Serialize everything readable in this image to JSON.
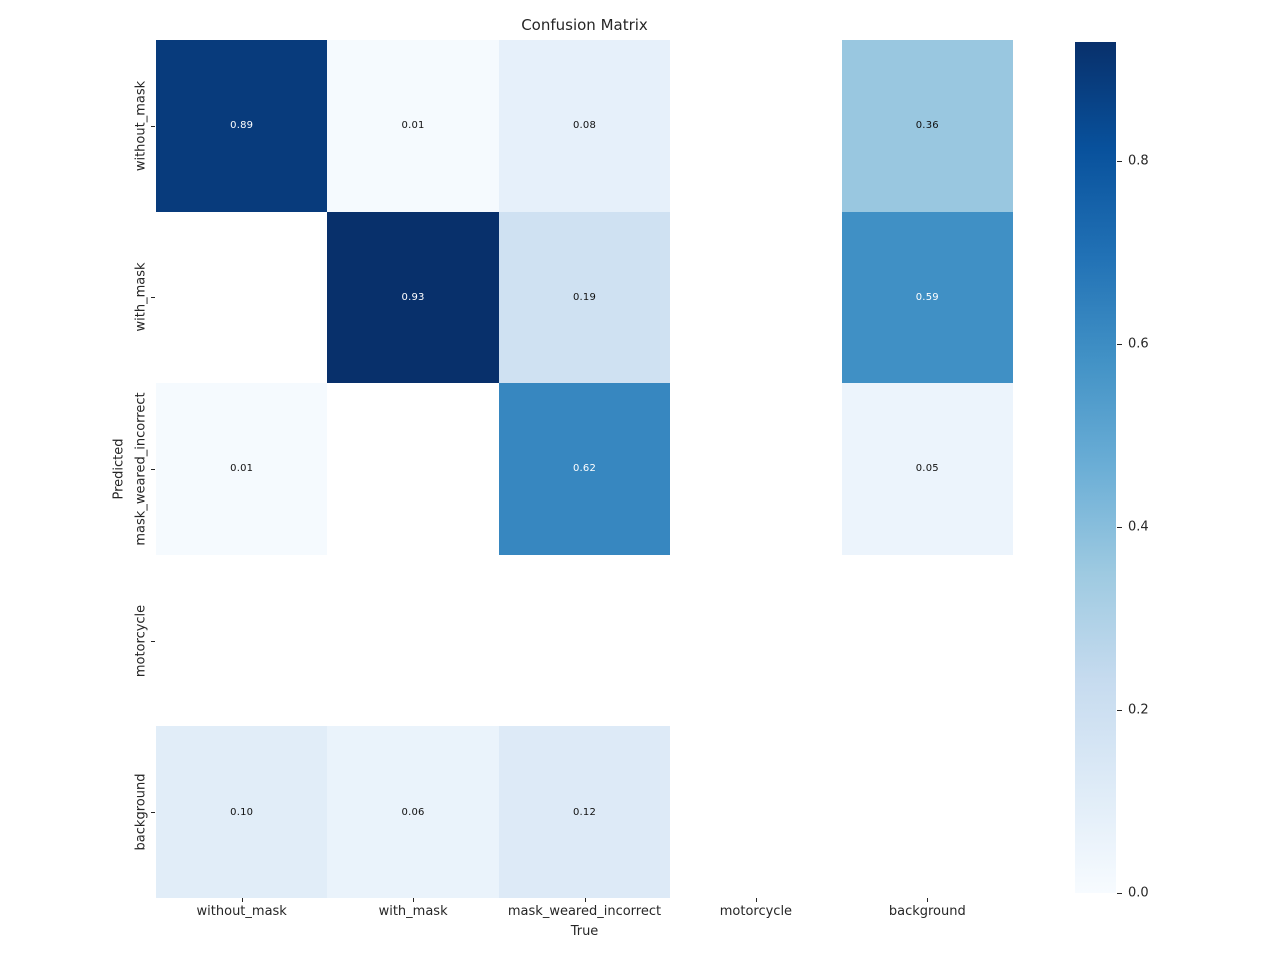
{
  "title": "Confusion Matrix",
  "chart_data": {
    "type": "heatmap",
    "title": "Confusion Matrix",
    "xlabel": "True",
    "ylabel": "Predicted",
    "x_categories": [
      "without_mask",
      "with_mask",
      "mask_weared_incorrect",
      "motorcycle",
      "background"
    ],
    "y_categories": [
      "without_mask",
      "with_mask",
      "mask_weared_incorrect",
      "motorcycle",
      "background"
    ],
    "normalization": "column (values per True class sum to 1)",
    "values": [
      [
        0.89,
        0.01,
        0.08,
        null,
        0.36
      ],
      [
        null,
        0.93,
        0.19,
        null,
        0.59
      ],
      [
        0.01,
        null,
        0.62,
        null,
        0.05
      ],
      [
        null,
        null,
        null,
        null,
        null
      ],
      [
        0.1,
        0.06,
        0.12,
        null,
        null
      ]
    ],
    "cell_labels": [
      [
        "0.89",
        "0.01",
        "0.08",
        "",
        "0.36"
      ],
      [
        "",
        "0.93",
        "0.19",
        "",
        "0.59"
      ],
      [
        "0.01",
        "",
        "0.62",
        "",
        "0.05"
      ],
      [
        "",
        "",
        "",
        "",
        ""
      ],
      [
        "0.10",
        "0.06",
        "0.12",
        "",
        ""
      ]
    ],
    "cell_colors": [
      [
        "#083b7c",
        "#f5fafe",
        "#e6f0fa",
        "#ffffff",
        "#99c7e0"
      ],
      [
        "#ffffff",
        "#08306b",
        "#cfe1f2",
        "#ffffff",
        "#4090c5"
      ],
      [
        "#f5fafe",
        "#ffffff",
        "#3787c0",
        "#ffffff",
        "#ecf4fc"
      ],
      [
        "#ffffff",
        "#ffffff",
        "#ffffff",
        "#ffffff",
        "#ffffff"
      ],
      [
        "#e1edf8",
        "#eaf3fb",
        "#ddeaf7",
        "#ffffff",
        "#ffffff"
      ]
    ],
    "cell_text_colors": [
      [
        "#ffffff",
        "#111111",
        "#111111",
        "",
        "#111111"
      ],
      [
        "",
        "#ffffff",
        "#111111",
        "",
        "#ffffff"
      ],
      [
        "#111111",
        "",
        "#ffffff",
        "",
        "#111111"
      ],
      [
        "",
        "",
        "",
        "",
        ""
      ],
      [
        "#111111",
        "#111111",
        "#111111",
        "",
        ""
      ]
    ],
    "colormap": "Blues",
    "vmin": 0,
    "vmax": 0.93,
    "grid": false,
    "colorbar": {
      "tick_labels": [
        "0.8",
        "0.6",
        "0.4",
        "0.2",
        "0.0"
      ],
      "tick_values": [
        0.8,
        0.6,
        0.4,
        0.2,
        0.0
      ],
      "gradient_stops_top_to_bottom": [
        {
          "pct": 0,
          "color": "#08306b"
        },
        {
          "pct": 12.5,
          "color": "#08519c"
        },
        {
          "pct": 25,
          "color": "#2171b5"
        },
        {
          "pct": 37.5,
          "color": "#4292c6"
        },
        {
          "pct": 50,
          "color": "#6baed6"
        },
        {
          "pct": 62.5,
          "color": "#9ecae1"
        },
        {
          "pct": 75,
          "color": "#c6dbef"
        },
        {
          "pct": 87.5,
          "color": "#deebf7"
        },
        {
          "pct": 100,
          "color": "#f7fbff"
        }
      ]
    },
    "accent_colors": {
      "darkest_cell": "#08306b",
      "text_dark": "#262626"
    }
  }
}
